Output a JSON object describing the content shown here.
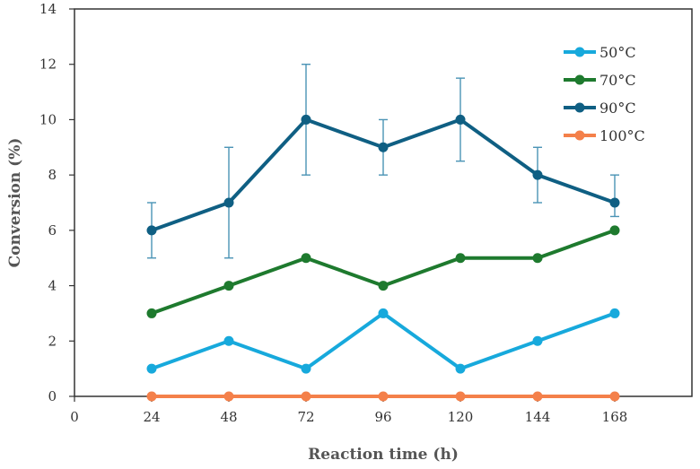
{
  "chart_data": {
    "type": "line",
    "title": "",
    "xlabel": "Reaction time (h)",
    "ylabel": "Conversion (%)",
    "xlim": [
      0,
      192
    ],
    "ylim": [
      0,
      14
    ],
    "x_ticks": [
      0,
      24,
      48,
      72,
      96,
      120,
      144,
      168
    ],
    "y_ticks": [
      0,
      2,
      4,
      6,
      8,
      10,
      12,
      14
    ],
    "x": [
      24,
      48,
      72,
      96,
      120,
      144,
      168
    ],
    "legend_position": "top-right",
    "grid": false,
    "series": [
      {
        "name": "50°C",
        "color": "#17a9dc",
        "values": [
          1,
          2,
          1,
          3,
          1,
          2,
          3
        ]
      },
      {
        "name": "70°C",
        "color": "#1e7a2e",
        "values": [
          3,
          4,
          5,
          4,
          5,
          5,
          6
        ]
      },
      {
        "name": "90°C",
        "color": "#0f5f83",
        "values": [
          6,
          7,
          10,
          9,
          10,
          8,
          7
        ],
        "error_low": [
          5,
          5,
          8,
          8,
          8.5,
          7,
          6.5
        ],
        "error_high": [
          7,
          9,
          12,
          10,
          11.5,
          9,
          8
        ]
      },
      {
        "name": "100°C",
        "color": "#f4804a",
        "values": [
          0,
          0,
          0,
          0,
          0,
          0,
          0
        ]
      }
    ]
  }
}
